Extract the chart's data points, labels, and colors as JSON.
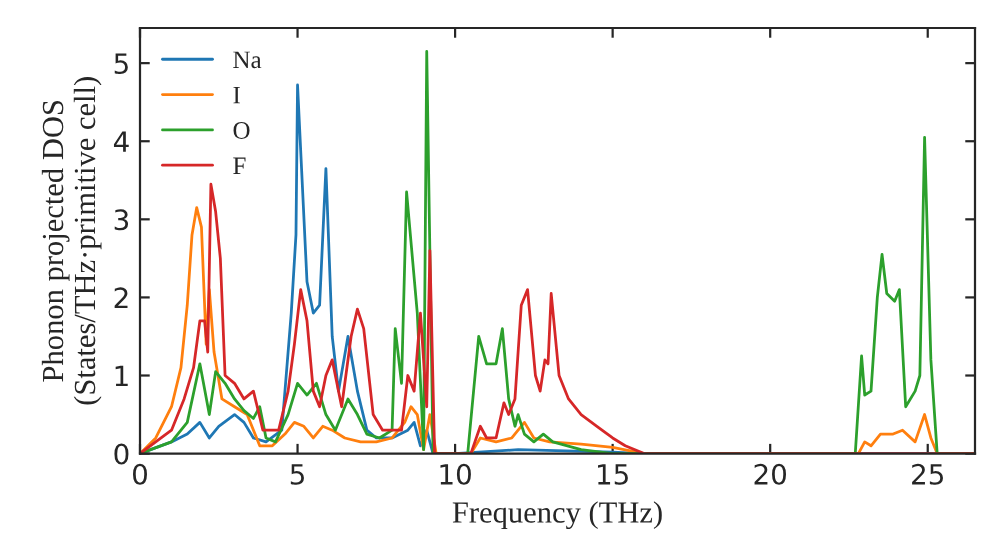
{
  "chart_data": {
    "type": "line",
    "xlabel": "Frequency (THz)",
    "ylabel": "Phonon projected DOS\n(States/THz·primitive cell)",
    "xlim": [
      0,
      26.5
    ],
    "ylim": [
      0,
      5.45
    ],
    "xticks": [
      0,
      5,
      10,
      15,
      20,
      25
    ],
    "yticks": [
      0,
      1,
      2,
      3,
      4,
      5
    ],
    "legend": "top left",
    "grid": false,
    "series": [
      {
        "name": "Na",
        "color": "#1f77b4",
        "x": [
          0,
          1,
          1.5,
          1.9,
          2.2,
          2.5,
          3,
          3.3,
          3.6,
          4,
          4.5,
          4.8,
          4.95,
          5.0,
          5.3,
          5.5,
          5.7,
          5.9,
          6.1,
          6.3,
          6.6,
          6.9,
          7.2,
          7.5,
          8,
          8.5,
          8.7,
          8.9,
          9.1,
          9.3,
          10,
          12,
          15,
          16,
          26.5
        ],
        "values": [
          0,
          0.15,
          0.25,
          0.4,
          0.2,
          0.35,
          0.5,
          0.4,
          0.2,
          0.15,
          0.3,
          1.8,
          2.8,
          4.72,
          2.2,
          1.8,
          1.9,
          3.65,
          1.5,
          0.8,
          1.5,
          0.8,
          0.3,
          0.2,
          0.2,
          0.3,
          0.4,
          0.1,
          0.3,
          0,
          0,
          0.05,
          0.02,
          0,
          0
        ]
      },
      {
        "name": "I",
        "color": "#ff7f0e",
        "x": [
          0,
          0.5,
          1,
          1.3,
          1.5,
          1.65,
          1.8,
          1.95,
          2.1,
          2.2,
          2.35,
          2.6,
          3.0,
          3.4,
          3.8,
          4.2,
          4.6,
          4.9,
          5.2,
          5.5,
          5.8,
          6.1,
          6.5,
          7,
          7.5,
          8,
          8.4,
          8.6,
          8.8,
          9.0,
          9.2,
          9.4,
          10.5,
          10.8,
          11.3,
          11.8,
          12.2,
          12.5,
          13,
          14,
          15,
          16,
          22.8,
          23,
          23.2,
          23.5,
          23.9,
          24.2,
          24.6,
          24.9,
          25.1,
          25.3,
          26.5
        ],
        "values": [
          0,
          0.2,
          0.6,
          1.1,
          1.9,
          2.8,
          3.15,
          2.9,
          1.4,
          2.1,
          1.3,
          0.7,
          0.6,
          0.5,
          0.1,
          0.1,
          0.25,
          0.4,
          0.35,
          0.2,
          0.35,
          0.3,
          0.2,
          0.15,
          0.15,
          0.2,
          0.4,
          0.6,
          0.5,
          0.05,
          0.5,
          0,
          0,
          0.2,
          0.15,
          0.2,
          0.4,
          0.2,
          0.15,
          0.12,
          0.08,
          0,
          0,
          0.15,
          0.1,
          0.25,
          0.25,
          0.3,
          0.15,
          0.5,
          0.2,
          0,
          0
        ]
      },
      {
        "name": "O",
        "color": "#2ca02c",
        "x": [
          0,
          1,
          1.5,
          1.9,
          2.2,
          2.4,
          2.7,
          3,
          3.3,
          3.6,
          3.8,
          4.0,
          4.3,
          4.7,
          5.0,
          5.3,
          5.6,
          5.9,
          6.2,
          6.6,
          6.9,
          7.2,
          7.6,
          8,
          8.1,
          8.3,
          8.46,
          8.8,
          9.0,
          9.1,
          9.3,
          10.4,
          10.75,
          11.0,
          11.3,
          11.5,
          11.7,
          11.9,
          12.0,
          12.2,
          12.5,
          12.8,
          13.1,
          14,
          15,
          22.7,
          22.9,
          23.0,
          23.2,
          23.4,
          23.55,
          23.7,
          23.95,
          24.1,
          24.3,
          24.6,
          24.75,
          24.9,
          25.1,
          25.3,
          26.5
        ],
        "values": [
          0,
          0.15,
          0.4,
          1.15,
          0.5,
          1.05,
          0.9,
          0.7,
          0.55,
          0.45,
          0.6,
          0.2,
          0.15,
          0.5,
          0.9,
          0.75,
          0.9,
          0.5,
          0.3,
          0.7,
          0.5,
          0.25,
          0.2,
          0.3,
          1.6,
          0.9,
          3.35,
          1.8,
          0.05,
          5.15,
          0,
          0,
          1.5,
          1.15,
          1.15,
          1.6,
          0.7,
          0.35,
          0.5,
          0.25,
          0.15,
          0.25,
          0.15,
          0.05,
          0,
          0,
          1.25,
          0.75,
          0.8,
          2.0,
          2.55,
          2.05,
          1.95,
          2.1,
          0.6,
          0.8,
          1.0,
          4.05,
          1.2,
          0,
          0
        ]
      },
      {
        "name": "F",
        "color": "#d62728",
        "x": [
          0,
          1,
          1.4,
          1.7,
          1.9,
          2.05,
          2.15,
          2.25,
          2.4,
          2.55,
          2.7,
          3.0,
          3.3,
          3.6,
          3.9,
          4.1,
          4.4,
          4.7,
          4.9,
          5.1,
          5.3,
          5.5,
          5.7,
          5.9,
          6.1,
          6.4,
          6.7,
          6.9,
          7.1,
          7.4,
          7.7,
          8.0,
          8.3,
          8.5,
          8.7,
          8.9,
          9.1,
          9.2,
          9.35,
          10.5,
          10.8,
          11.0,
          11.3,
          11.55,
          11.7,
          11.9,
          12.1,
          12.3,
          12.55,
          12.7,
          12.85,
          12.95,
          13.05,
          13.3,
          13.6,
          14.0,
          14.5,
          15,
          15.4,
          16,
          26.5
        ],
        "values": [
          0,
          0.3,
          0.7,
          1.1,
          1.7,
          1.7,
          1.3,
          3.45,
          3.1,
          2.5,
          1.0,
          0.9,
          0.7,
          0.8,
          0.3,
          0.3,
          0.3,
          0.8,
          1.4,
          2.1,
          1.7,
          0.8,
          0.6,
          1.0,
          1.2,
          0.6,
          1.5,
          1.85,
          1.6,
          0.5,
          0.3,
          0.3,
          0.3,
          1.0,
          0.8,
          1.8,
          0.6,
          2.6,
          0,
          0,
          0.35,
          0.2,
          0.2,
          0.65,
          0.5,
          0.7,
          1.9,
          2.1,
          1.0,
          0.8,
          1.2,
          1.15,
          2.05,
          1.0,
          0.7,
          0.5,
          0.35,
          0.2,
          0.1,
          0,
          0
        ]
      }
    ]
  }
}
